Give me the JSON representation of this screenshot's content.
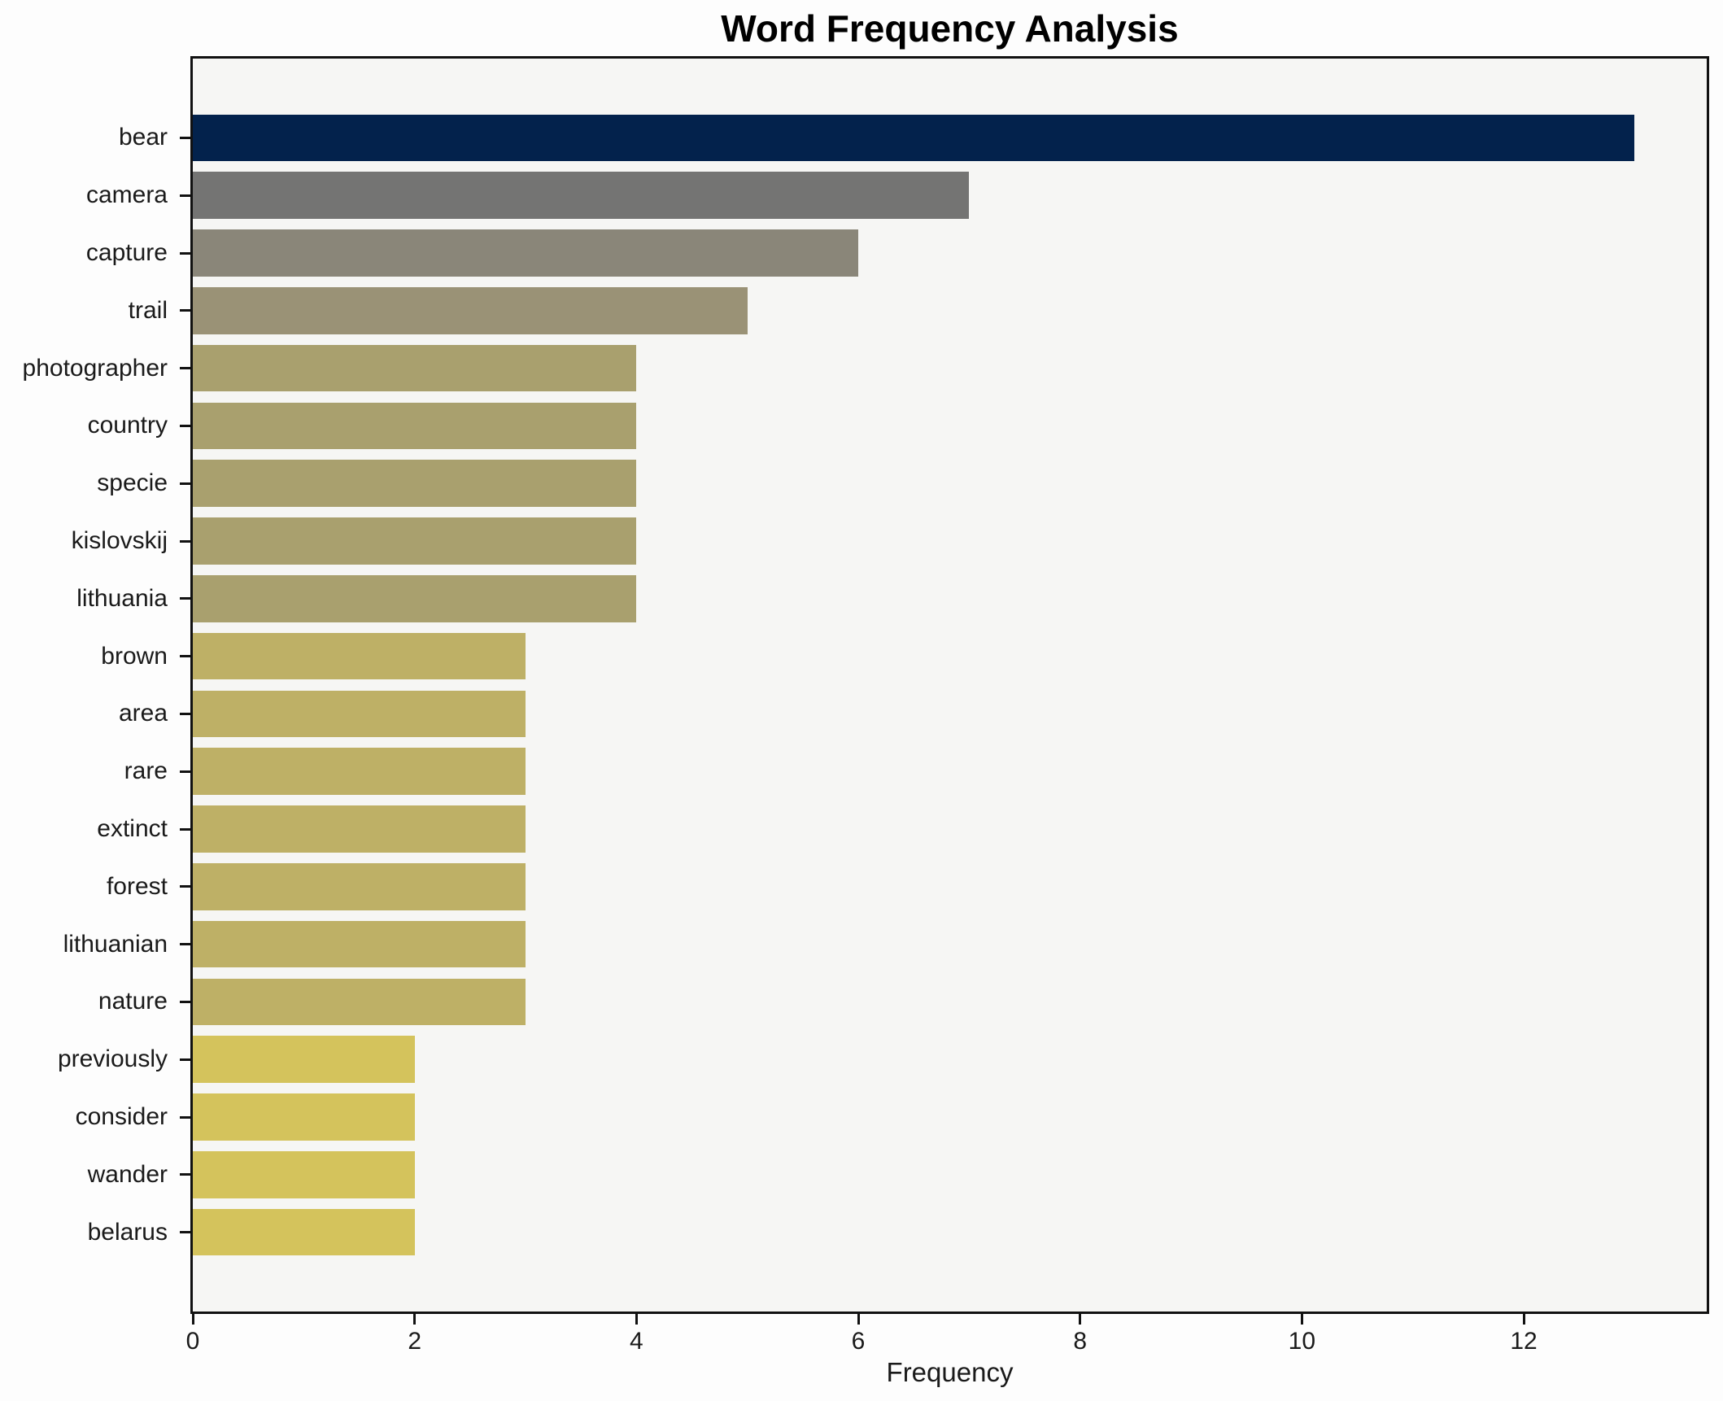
{
  "chart_data": {
    "type": "bar",
    "orientation": "horizontal",
    "title": "Word Frequency Analysis",
    "xlabel": "Frequency",
    "ylabel": "",
    "xlim": [
      0,
      13.65
    ],
    "x_ticks": [
      0,
      2,
      4,
      6,
      8,
      10,
      12
    ],
    "grid": false,
    "legend": false,
    "categories": [
      "bear",
      "camera",
      "capture",
      "trail",
      "photographer",
      "country",
      "specie",
      "kislovskij",
      "lithuania",
      "brown",
      "area",
      "rare",
      "extinct",
      "forest",
      "lithuanian",
      "nature",
      "previously",
      "consider",
      "wander",
      "belarus"
    ],
    "values": [
      13,
      7,
      6,
      5,
      4,
      4,
      4,
      4,
      4,
      3,
      3,
      3,
      3,
      3,
      3,
      3,
      2,
      2,
      2,
      2
    ],
    "bar_colors": [
      "#03224c",
      "#747473",
      "#8a8679",
      "#9a9276",
      "#a9a06e",
      "#a9a06e",
      "#a9a06e",
      "#a9a06e",
      "#a9a06e",
      "#beb066",
      "#beb066",
      "#beb066",
      "#beb066",
      "#beb066",
      "#beb066",
      "#beb066",
      "#d4c35c",
      "#d4c35c",
      "#d4c35c",
      "#d4c35c"
    ]
  },
  "colors": {
    "figure_bg": "#fdfdfd",
    "plot_bg": "#f6f6f4",
    "axis": "#111111",
    "text": "#1a1a1a"
  }
}
